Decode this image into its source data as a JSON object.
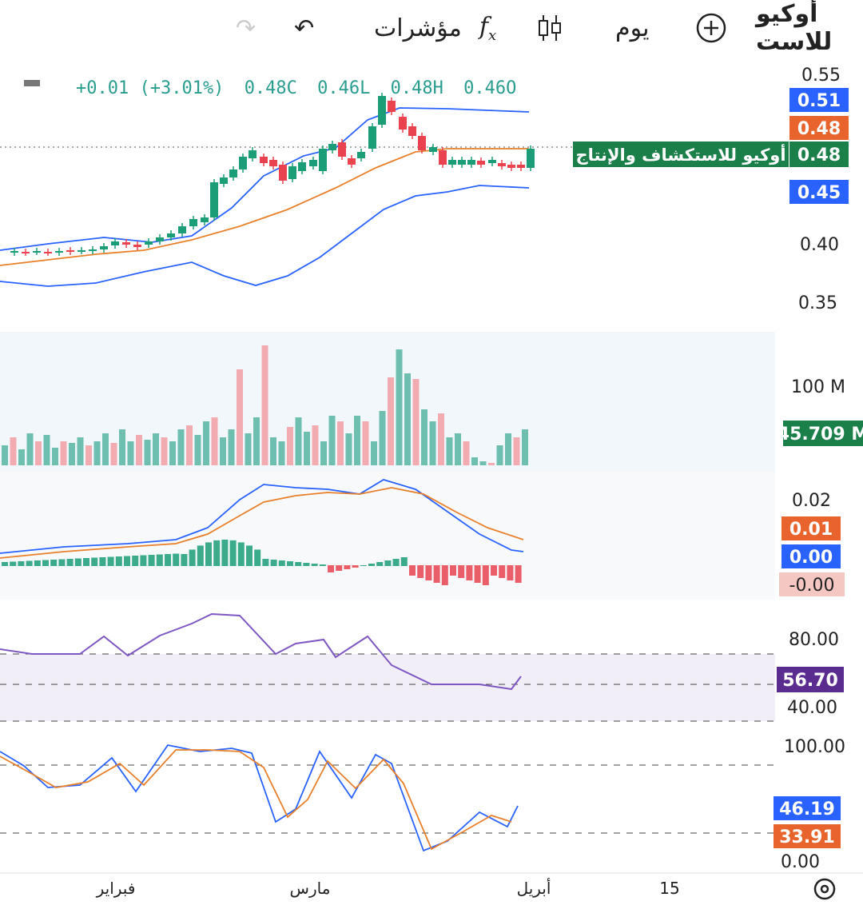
{
  "toolbar": {
    "symbol": "أوكيو للاست",
    "interval": "يوم",
    "indicators_label": "مؤشرات",
    "fx_label": "f",
    "fx_sub": "x"
  },
  "ohlc": {
    "change": "+0.01 (+3.01%)",
    "close": "0.48C",
    "low": "0.46L",
    "high": "0.48H",
    "open": "0.46O"
  },
  "price_axis": [
    "0.55",
    "0.40",
    "0.35"
  ],
  "price_badges": [
    {
      "text": "0.51",
      "color": "#2962ff"
    },
    {
      "text": "0.48",
      "color": "#e8642c"
    },
    {
      "text": "0.48",
      "color": "#1b7f4a"
    },
    {
      "text": "0.45",
      "color": "#2962ff"
    }
  ],
  "symbol_badge": "أوكيو للاستكشاف والإنتاج",
  "volume_axis": "100 M",
  "volume_badge": "45.709 M",
  "macd_axis": "0.02",
  "macd_badges": [
    {
      "text": "0.01",
      "color": "#e8642c"
    },
    {
      "text": "0.00",
      "color": "#2962ff"
    },
    {
      "text": "-0.00",
      "color": "#f4c7c3"
    }
  ],
  "rsi_axis": [
    "80.00",
    "40.00"
  ],
  "rsi_badge": "56.70",
  "stoch_axis": [
    "100.00",
    "0.00"
  ],
  "stoch_badges": [
    {
      "text": "46.19",
      "color": "#2962ff"
    },
    {
      "text": "33.91",
      "color": "#e8642c"
    }
  ],
  "time_axis": [
    "فبراير",
    "مارس",
    "أبريل",
    "15"
  ],
  "colors": {
    "up": "#1b9e77",
    "down": "#e8434f",
    "blue": "#2962ff",
    "orange": "#e8802c",
    "purple": "#7e57c2"
  }
}
